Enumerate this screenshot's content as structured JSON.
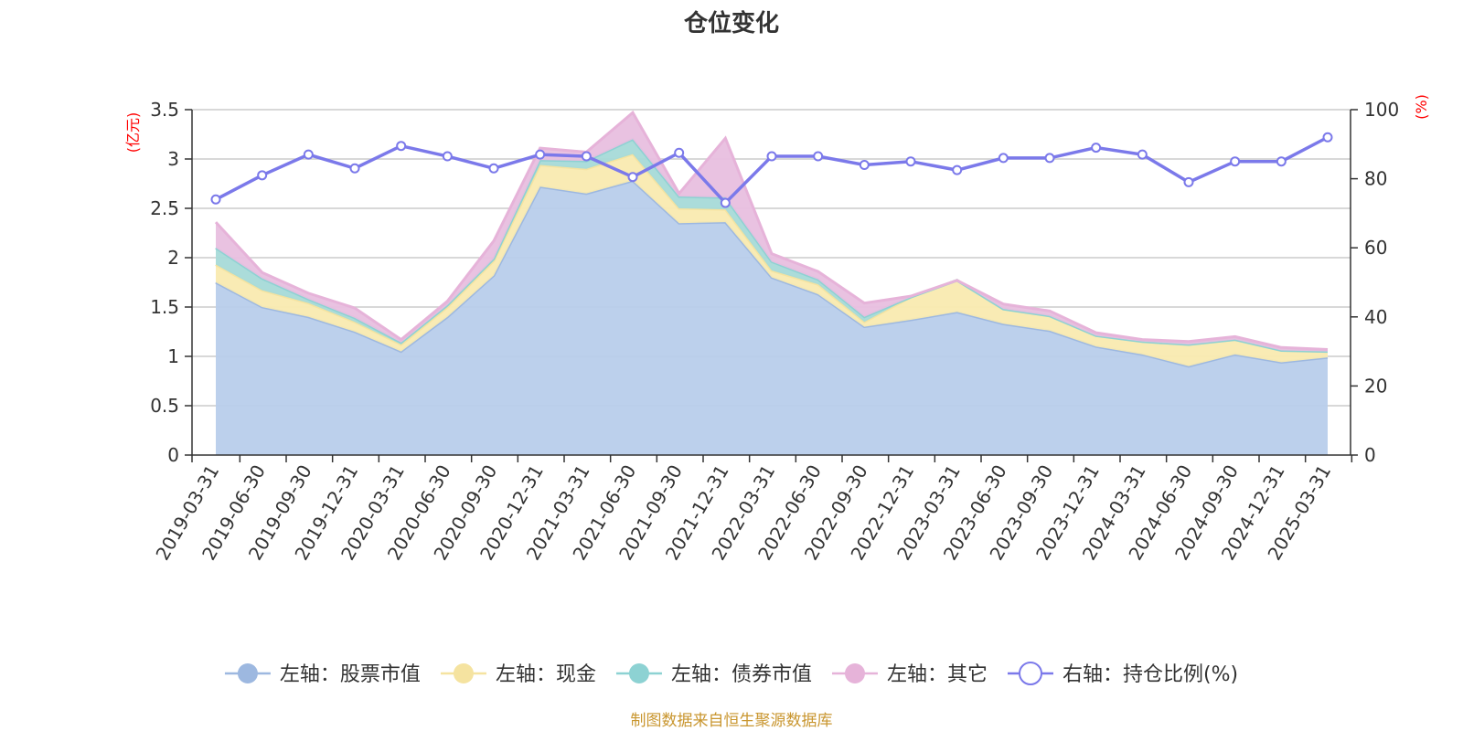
{
  "chart_data": {
    "type": "area",
    "title": "仓位变化",
    "source_note": "制图数据来自恒生聚源数据库",
    "left_axis": {
      "unit": "(亿元)",
      "ylim": [
        0,
        3.5
      ],
      "ticks": [
        "0",
        "0.5",
        "1",
        "1.5",
        "2",
        "2.5",
        "3",
        "3.5"
      ]
    },
    "right_axis": {
      "unit": "(%)",
      "ylim": [
        0,
        100
      ],
      "ticks": [
        "0",
        "20",
        "40",
        "60",
        "80",
        "100"
      ]
    },
    "categories": [
      "2019-03-31",
      "2019-06-30",
      "2019-09-30",
      "2019-12-31",
      "2020-03-31",
      "2020-06-30",
      "2020-09-30",
      "2020-12-31",
      "2021-03-31",
      "2021-06-30",
      "2021-09-30",
      "2021-12-31",
      "2022-03-31",
      "2022-06-30",
      "2022-09-30",
      "2022-12-31",
      "2023-03-31",
      "2023-06-30",
      "2023-09-30",
      "2023-12-31",
      "2024-03-31",
      "2024-06-30",
      "2024-09-30",
      "2024-12-31",
      "2025-03-31"
    ],
    "series": [
      {
        "name": "左轴：股票市值",
        "axis": "left",
        "stack": true,
        "color": "#9db8e0",
        "fill": "#b8cdeb",
        "values": [
          1.75,
          1.5,
          1.4,
          1.25,
          1.05,
          1.4,
          1.82,
          2.72,
          2.65,
          2.78,
          2.35,
          2.36,
          1.8,
          1.63,
          1.3,
          1.37,
          1.45,
          1.33,
          1.26,
          1.1,
          1.02,
          0.9,
          1.02,
          0.94,
          0.99
        ]
      },
      {
        "name": "左轴：现金",
        "axis": "left",
        "stack": true,
        "color": "#f5e3a0",
        "fill": "#f9eab0",
        "values": [
          0.18,
          0.17,
          0.14,
          0.1,
          0.07,
          0.1,
          0.15,
          0.22,
          0.25,
          0.27,
          0.15,
          0.13,
          0.07,
          0.1,
          0.05,
          0.23,
          0.32,
          0.15,
          0.15,
          0.11,
          0.13,
          0.22,
          0.15,
          0.12,
          0.06
        ]
      },
      {
        "name": "左轴：债券市值",
        "axis": "left",
        "stack": true,
        "color": "#8dd2d3",
        "fill": "#a7dad8",
        "values": [
          0.17,
          0.12,
          0.04,
          0.04,
          0.02,
          0.02,
          0.02,
          0.05,
          0.08,
          0.15,
          0.12,
          0.12,
          0.09,
          0.05,
          0.05,
          0.0,
          0.0,
          0.0,
          0.0,
          0.0,
          0.0,
          0.0,
          0.0,
          0.0,
          0.0
        ]
      },
      {
        "name": "左轴：其它",
        "axis": "left",
        "stack": true,
        "color": "#e6b3d9",
        "fill": "#e8bfdf",
        "values": [
          0.26,
          0.06,
          0.06,
          0.1,
          0.03,
          0.04,
          0.18,
          0.12,
          0.09,
          0.27,
          0.03,
          0.6,
          0.08,
          0.08,
          0.14,
          0.01,
          0.0,
          0.05,
          0.05,
          0.03,
          0.02,
          0.03,
          0.03,
          0.03,
          0.02
        ]
      },
      {
        "name": "右轴：持仓比例(%)",
        "axis": "right",
        "stack": false,
        "color": "#7b79ea",
        "values": [
          74,
          81,
          87,
          83,
          89.5,
          86.5,
          83,
          87,
          86.5,
          80.5,
          87.5,
          73,
          86.5,
          86.5,
          84,
          85,
          82.5,
          86,
          86,
          89,
          87,
          79,
          85,
          85,
          92
        ]
      }
    ]
  }
}
